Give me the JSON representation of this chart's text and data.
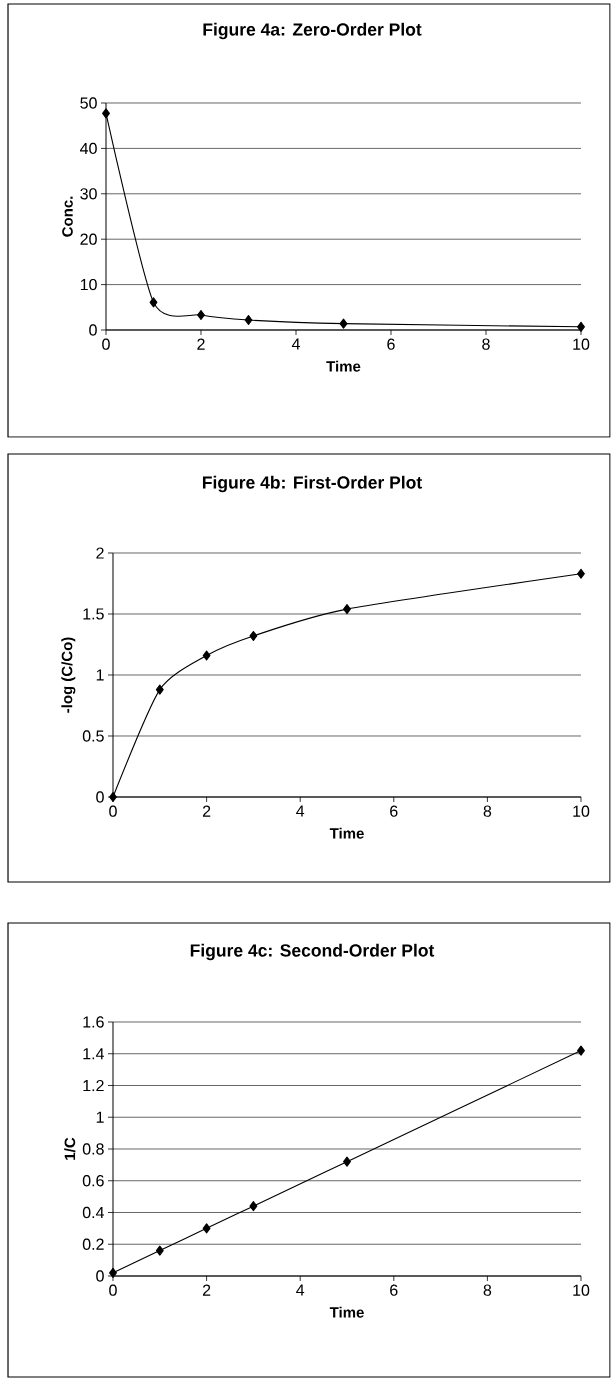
{
  "chart_data": [
    {
      "type": "line",
      "title": "Figure 4a: Zero-Order Plot",
      "xlabel": "Time",
      "ylabel": "Conc.",
      "x": [
        0,
        1,
        2,
        3,
        5,
        10
      ],
      "values": [
        47.7,
        6.1,
        3.3,
        2.2,
        1.4,
        0.7
      ],
      "color": "#000000",
      "xlim": [
        0,
        10
      ],
      "ylim": [
        0,
        50
      ],
      "xticks": [
        0,
        2,
        4,
        6,
        8,
        10
      ],
      "yticks": [
        0,
        10,
        20,
        30,
        40,
        50
      ],
      "grid": "y",
      "marker": "diamond",
      "line_style": "solid"
    },
    {
      "type": "line",
      "title": "Figure 4b: First-Order Plot",
      "xlabel": "Time",
      "ylabel": "-log (C/Co)",
      "x": [
        0,
        1,
        2,
        3,
        5,
        10
      ],
      "values": [
        0,
        0.88,
        1.16,
        1.32,
        1.54,
        1.83
      ],
      "color": "#000000",
      "xlim": [
        0,
        10
      ],
      "ylim": [
        0,
        2
      ],
      "xticks": [
        0,
        2,
        4,
        6,
        8,
        10
      ],
      "yticks": [
        0,
        0.5,
        1,
        1.5,
        2
      ],
      "grid": "y",
      "marker": "diamond",
      "line_style": "solid"
    },
    {
      "type": "line",
      "title": "Figure 4c: Second-Order Plot",
      "xlabel": "Time",
      "ylabel": "1/C",
      "x": [
        0,
        1,
        2,
        3,
        5,
        10
      ],
      "values": [
        0.02,
        0.16,
        0.3,
        0.44,
        0.72,
        1.42
      ],
      "color": "#000000",
      "xlim": [
        0,
        10
      ],
      "ylim": [
        0,
        1.6
      ],
      "xticks": [
        0,
        2,
        4,
        6,
        8,
        10
      ],
      "yticks": [
        0,
        0.2,
        0.4,
        0.6,
        0.8,
        1,
        1.2,
        1.4,
        1.6
      ],
      "grid": "y",
      "marker": "diamond",
      "line_style": "solid"
    }
  ]
}
